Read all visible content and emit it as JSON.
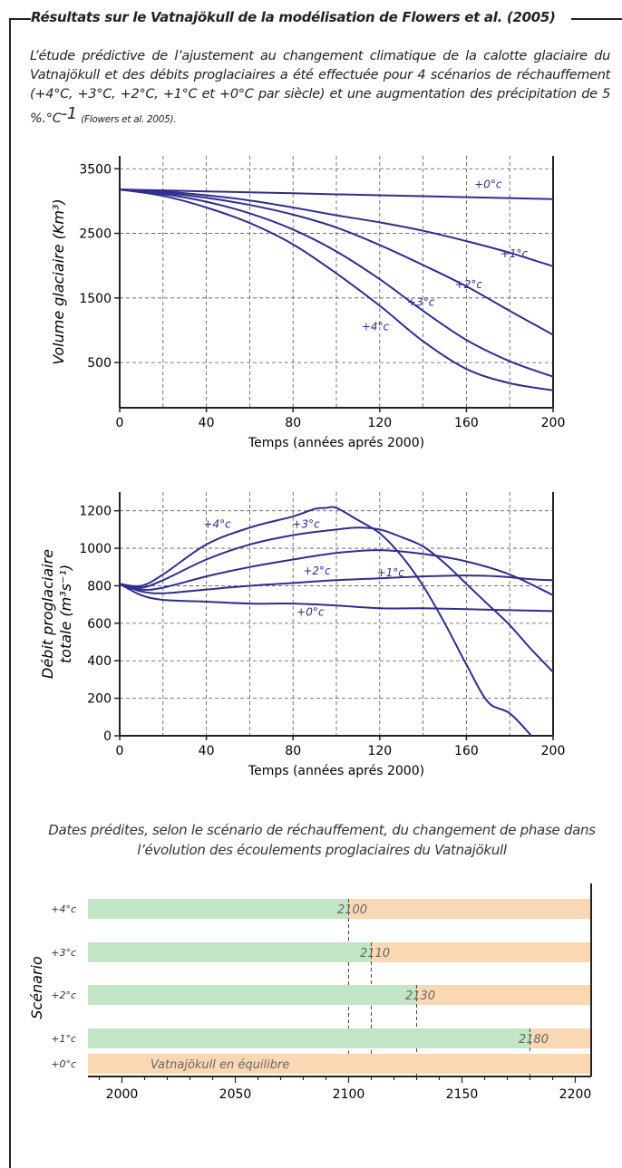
{
  "header": {
    "title": "Résultats sur le Vatnajökull de la modélisation de Flowers et al. (2005)"
  },
  "intro": {
    "text": "L’étude prédictive de l’ajustement au changement climatique de la calotte glaciaire du Vatnajökull et des débits proglaciaires  a été effectuée pour 4 scénarios de réchauffement (+4°C, +3°C, +2°C, +1°C et +0°C par siècle) et une augmentation des précipitation de 5 %.°C",
    "exponent": "-1",
    "reference": "(Flowers et al. 2005)."
  },
  "colors": {
    "line": "#2e2e8c",
    "green": "#c2e6c5",
    "orange": "#fad8b4",
    "axis": "#222222",
    "grid": "#555555"
  },
  "chart_data": [
    {
      "type": "line",
      "ylabel": "Volume glaciaire (Km³)",
      "xlabel": "Temps (années aprés 2000)",
      "xlim": [
        0,
        200
      ],
      "ylim": [
        -200,
        3700
      ],
      "xticks": [
        0,
        40,
        80,
        120,
        160,
        200
      ],
      "yticks": [
        500,
        1500,
        2500,
        3500
      ],
      "grid": true,
      "series": [
        {
          "name": "+0°c",
          "x": [
            0,
            40,
            80,
            120,
            160,
            200
          ],
          "y": [
            3180,
            3150,
            3120,
            3090,
            3060,
            3030
          ]
        },
        {
          "name": "+1°c",
          "x": [
            0,
            20,
            40,
            60,
            80,
            100,
            120,
            140,
            160,
            180,
            200
          ],
          "y": [
            3180,
            3150,
            3090,
            3010,
            2900,
            2780,
            2670,
            2540,
            2380,
            2200,
            1990
          ]
        },
        {
          "name": "+2°c",
          "x": [
            0,
            20,
            40,
            60,
            80,
            100,
            120,
            140,
            160,
            180,
            200
          ],
          "y": [
            3180,
            3130,
            3050,
            2940,
            2790,
            2590,
            2320,
            2010,
            1680,
            1300,
            930
          ]
        },
        {
          "name": "+3°c",
          "x": [
            0,
            20,
            40,
            60,
            80,
            100,
            120,
            140,
            160,
            180,
            200
          ],
          "y": [
            3180,
            3110,
            2990,
            2810,
            2560,
            2220,
            1790,
            1300,
            850,
            520,
            280
          ]
        },
        {
          "name": "+4°c",
          "x": [
            0,
            20,
            40,
            60,
            80,
            100,
            120,
            140,
            160,
            180,
            200
          ],
          "y": [
            3180,
            3080,
            2900,
            2660,
            2330,
            1880,
            1380,
            830,
            400,
            180,
            70
          ]
        }
      ],
      "annotations": [
        {
          "text": "+0°c",
          "x": 170,
          "y": 3200
        },
        {
          "text": "+1°c",
          "x": 182,
          "y": 2130
        },
        {
          "text": "+2°c",
          "x": 161,
          "y": 1650
        },
        {
          "text": "+3°c",
          "x": 139,
          "y": 1380
        },
        {
          "text": "+4°c",
          "x": 118,
          "y": 1000
        }
      ]
    },
    {
      "type": "line",
      "ylabel": "Débit proglaciaire totale (m³s⁻¹)",
      "xlabel": "Temps (années aprés 2000)",
      "xlim": [
        0,
        200
      ],
      "ylim": [
        0,
        1300
      ],
      "xticks": [
        0,
        40,
        80,
        120,
        160,
        200
      ],
      "yticks": [
        0,
        200,
        400,
        600,
        800,
        1000,
        1200
      ],
      "grid": true,
      "series": [
        {
          "name": "+0°c",
          "x": [
            0,
            10,
            20,
            40,
            60,
            80,
            100,
            120,
            140,
            160,
            180,
            200
          ],
          "y": [
            810,
            750,
            725,
            715,
            705,
            705,
            695,
            680,
            680,
            675,
            670,
            665
          ]
        },
        {
          "name": "+1°c",
          "x": [
            0,
            10,
            20,
            40,
            60,
            80,
            100,
            120,
            140,
            160,
            175,
            190,
            200
          ],
          "y": [
            810,
            770,
            760,
            780,
            800,
            815,
            830,
            840,
            850,
            855,
            850,
            835,
            830
          ]
        },
        {
          "name": "+2°c",
          "x": [
            0,
            10,
            20,
            40,
            60,
            80,
            100,
            120,
            140,
            160,
            180,
            200
          ],
          "y": [
            810,
            780,
            790,
            850,
            900,
            940,
            975,
            990,
            970,
            930,
            860,
            750
          ]
        },
        {
          "name": "+3°c",
          "x": [
            0,
            10,
            20,
            40,
            60,
            80,
            100,
            110,
            120,
            130,
            140,
            150,
            160,
            170,
            180,
            190,
            200
          ],
          "y": [
            810,
            790,
            830,
            940,
            1020,
            1070,
            1100,
            1110,
            1100,
            1060,
            1010,
            920,
            810,
            700,
            590,
            460,
            340
          ]
        },
        {
          "name": "+4°c",
          "x": [
            0,
            10,
            20,
            40,
            60,
            80,
            90,
            95,
            100,
            110,
            120,
            130,
            140,
            150,
            160,
            170,
            180,
            190
          ],
          "y": [
            810,
            800,
            860,
            1020,
            1110,
            1170,
            1210,
            1215,
            1215,
            1150,
            1080,
            960,
            800,
            600,
            380,
            180,
            120,
            0
          ]
        }
      ],
      "annotations": [
        {
          "text": "+4°c",
          "x": 45,
          "y": 1110
        },
        {
          "text": "+3°c",
          "x": 86,
          "y": 1110
        },
        {
          "text": "+2°c",
          "x": 91,
          "y": 860
        },
        {
          "text": "+1°c",
          "x": 125,
          "y": 850
        },
        {
          "text": "+0°c",
          "x": 88,
          "y": 640
        }
      ]
    },
    {
      "type": "bar",
      "title": "Dates prédites,  selon le scénario de réchauffement, du changement de phase dans l’évolution des écoulements proglaciaires du Vatnajökull",
      "ylabel": "Scénario",
      "xlim": [
        1985,
        2207
      ],
      "xticks": [
        2000,
        2050,
        2100,
        2150,
        2200
      ],
      "bar_start": 1985,
      "bar_end": 2207,
      "categories": [
        "+4°c",
        "+3°c",
        "+2°c",
        "+1°c",
        "+0°c"
      ],
      "change_years": [
        2100,
        2110,
        2130,
        2180,
        null
      ],
      "value_labels": [
        "2100",
        "2110",
        "2130",
        "2180",
        ""
      ],
      "equilibrium_label": "Vatnajökull en équilibre"
    }
  ]
}
